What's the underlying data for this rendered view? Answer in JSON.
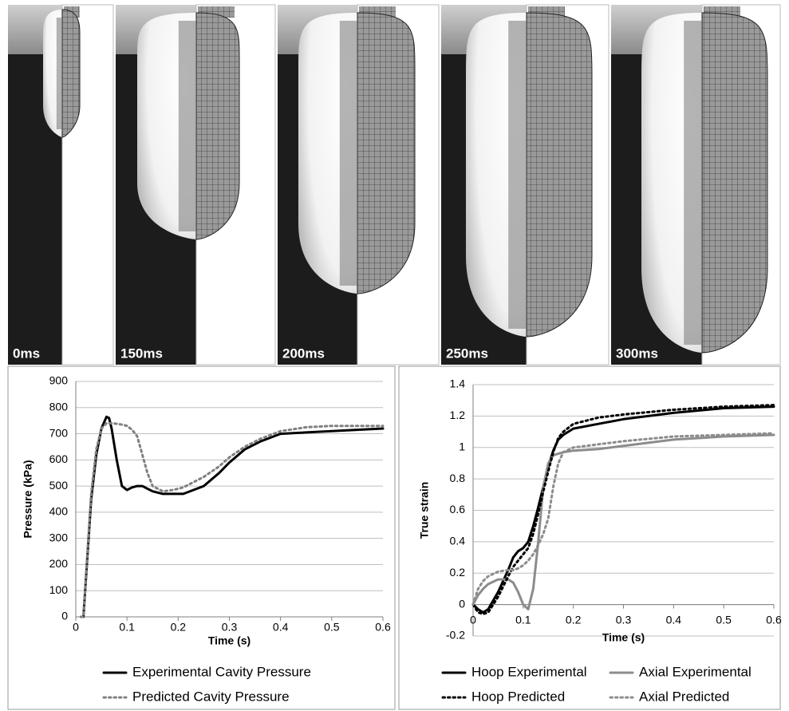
{
  "panels": [
    {
      "label": "0ms"
    },
    {
      "label": "150ms"
    },
    {
      "label": "200ms"
    },
    {
      "label": "250ms"
    },
    {
      "label": "300ms"
    }
  ],
  "chart_data": [
    {
      "type": "line",
      "x_label": "Time (s)",
      "y_label": "Pressure (kPa)",
      "x": [
        0.01,
        0.015,
        0.02,
        0.03,
        0.04,
        0.05,
        0.06,
        0.065,
        0.07,
        0.08,
        0.09,
        0.1,
        0.11,
        0.12,
        0.13,
        0.14,
        0.15,
        0.17,
        0.19,
        0.21,
        0.23,
        0.25,
        0.28,
        0.3,
        0.33,
        0.36,
        0.4,
        0.45,
        0.5,
        0.55,
        0.6
      ],
      "series": [
        {
          "name": "Experimental Cavity Pressure",
          "color": "#000000",
          "dash": "solid",
          "values": [
            0,
            0,
            150,
            450,
            620,
            720,
            765,
            760,
            720,
            600,
            500,
            485,
            495,
            500,
            500,
            490,
            480,
            470,
            470,
            470,
            485,
            500,
            550,
            590,
            640,
            670,
            700,
            705,
            710,
            715,
            720
          ]
        },
        {
          "name": "Predicted Cavity Pressure",
          "color": "#808080",
          "dash": "dotted",
          "values": [
            0,
            0,
            160,
            470,
            640,
            720,
            740,
            740,
            740,
            738,
            735,
            730,
            715,
            690,
            620,
            550,
            500,
            480,
            485,
            495,
            515,
            535,
            575,
            610,
            650,
            680,
            710,
            725,
            730,
            730,
            730
          ]
        }
      ],
      "xlim": [
        0,
        0.6
      ],
      "xticks": [
        0,
        0.1,
        0.2,
        0.3,
        0.4,
        0.5,
        0.6
      ],
      "ylim": [
        0,
        900
      ],
      "yticks": [
        0,
        100,
        200,
        300,
        400,
        500,
        600,
        700,
        800,
        900
      ],
      "grid": true
    },
    {
      "type": "line",
      "x_label": "Time (s)",
      "y_label": "True strain",
      "x": [
        0,
        0.01,
        0.02,
        0.03,
        0.05,
        0.07,
        0.08,
        0.09,
        0.1,
        0.11,
        0.12,
        0.13,
        0.14,
        0.15,
        0.16,
        0.17,
        0.18,
        0.2,
        0.25,
        0.3,
        0.4,
        0.5,
        0.6
      ],
      "series": [
        {
          "name": "Hoop Experimental",
          "color": "#000000",
          "dash": "solid",
          "values": [
            0,
            -0.03,
            -0.05,
            -0.03,
            0.08,
            0.22,
            0.3,
            0.34,
            0.36,
            0.4,
            0.5,
            0.62,
            0.75,
            0.88,
            0.98,
            1.05,
            1.08,
            1.12,
            1.15,
            1.18,
            1.22,
            1.25,
            1.26
          ]
        },
        {
          "name": "Axial Experimental",
          "color": "#8c8c8c",
          "dash": "solid",
          "values": [
            0,
            0.06,
            0.1,
            0.13,
            0.16,
            0.16,
            0.14,
            0.08,
            0,
            -0.03,
            0.1,
            0.4,
            0.75,
            0.9,
            0.95,
            0.96,
            0.97,
            0.98,
            0.99,
            1.01,
            1.05,
            1.07,
            1.08
          ]
        },
        {
          "name": "Hoop Predicted",
          "color": "#000000",
          "dash": "dotted",
          "values": [
            0,
            -0.05,
            -0.06,
            -0.05,
            0.05,
            0.18,
            0.24,
            0.28,
            0.32,
            0.36,
            0.45,
            0.58,
            0.72,
            0.85,
            0.97,
            1.06,
            1.1,
            1.15,
            1.19,
            1.21,
            1.24,
            1.26,
            1.27
          ]
        },
        {
          "name": "Axial Predicted",
          "color": "#8c8c8c",
          "dash": "dotted",
          "values": [
            0,
            0.1,
            0.15,
            0.18,
            0.21,
            0.22,
            0.22,
            0.23,
            0.25,
            0.28,
            0.32,
            0.38,
            0.45,
            0.55,
            0.75,
            0.9,
            0.97,
            1,
            1.02,
            1.04,
            1.07,
            1.08,
            1.09
          ]
        }
      ],
      "xlim": [
        0,
        0.6
      ],
      "xticks": [
        0,
        0.1,
        0.2,
        0.3,
        0.4,
        0.5,
        0.6
      ],
      "ylim": [
        -0.2,
        1.4
      ],
      "yticks": [
        -0.2,
        0,
        0.2,
        0.4,
        0.6,
        0.8,
        1,
        1.2,
        1.4
      ],
      "grid": true
    }
  ]
}
